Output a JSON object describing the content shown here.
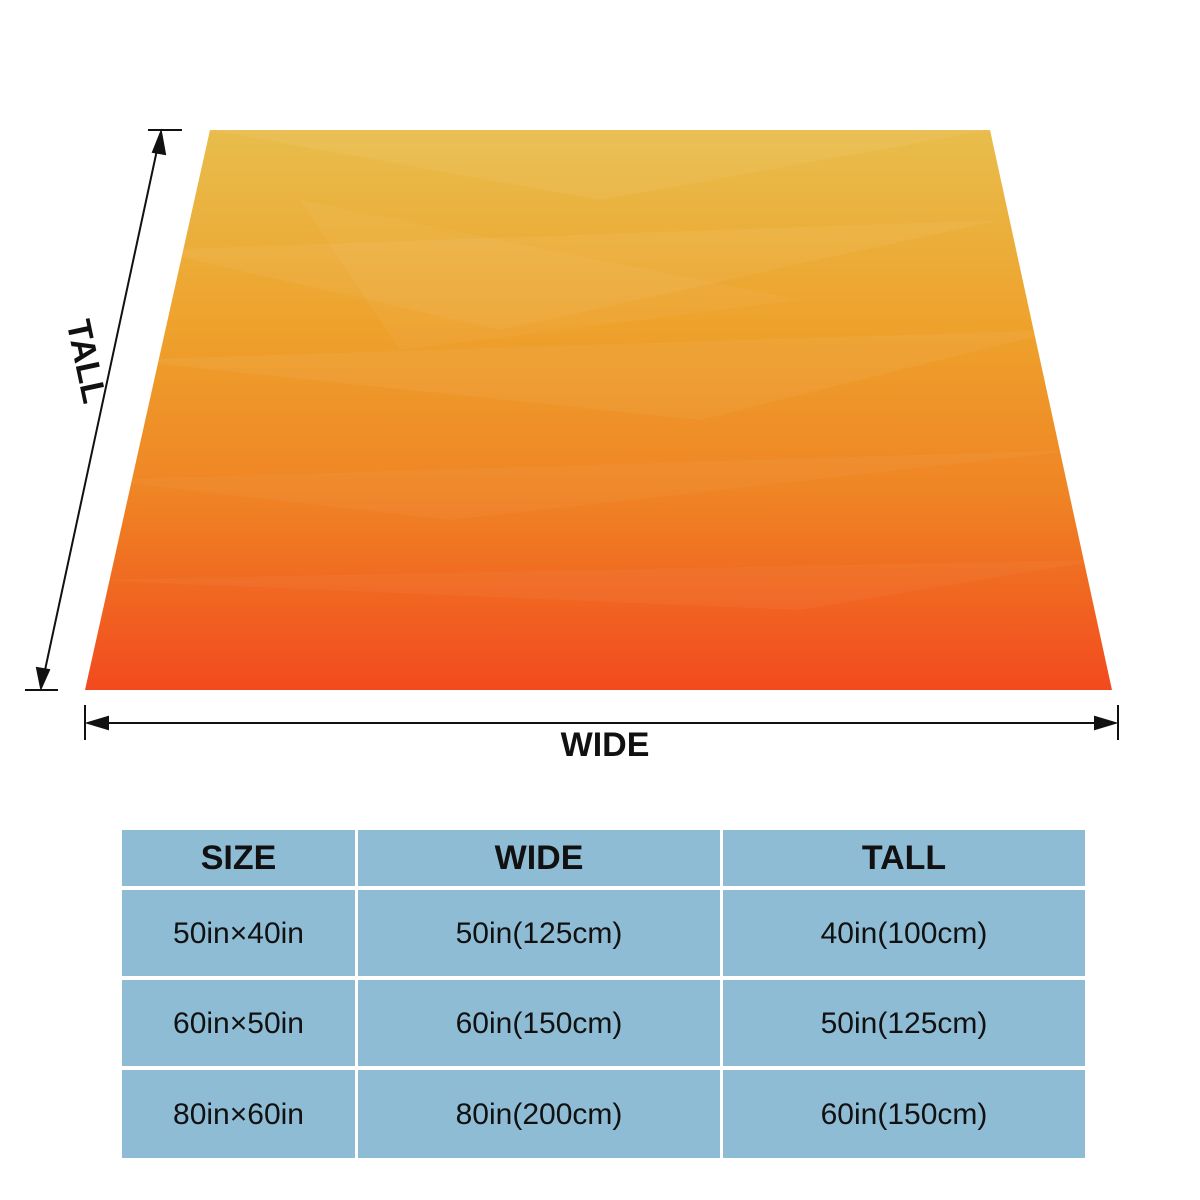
{
  "labels": {
    "tall": "TALL",
    "wide": "WIDE"
  },
  "table": {
    "header": [
      "SIZE",
      "WIDE",
      "TALL"
    ],
    "rows": [
      [
        "50in×40in",
        "50in(125cm)",
        "40in(100cm)"
      ],
      [
        "60in×50in",
        "60in(150cm)",
        "50in(125cm)"
      ],
      [
        "80in×60in",
        "80in(200cm)",
        "60in(150cm)"
      ]
    ]
  }
}
